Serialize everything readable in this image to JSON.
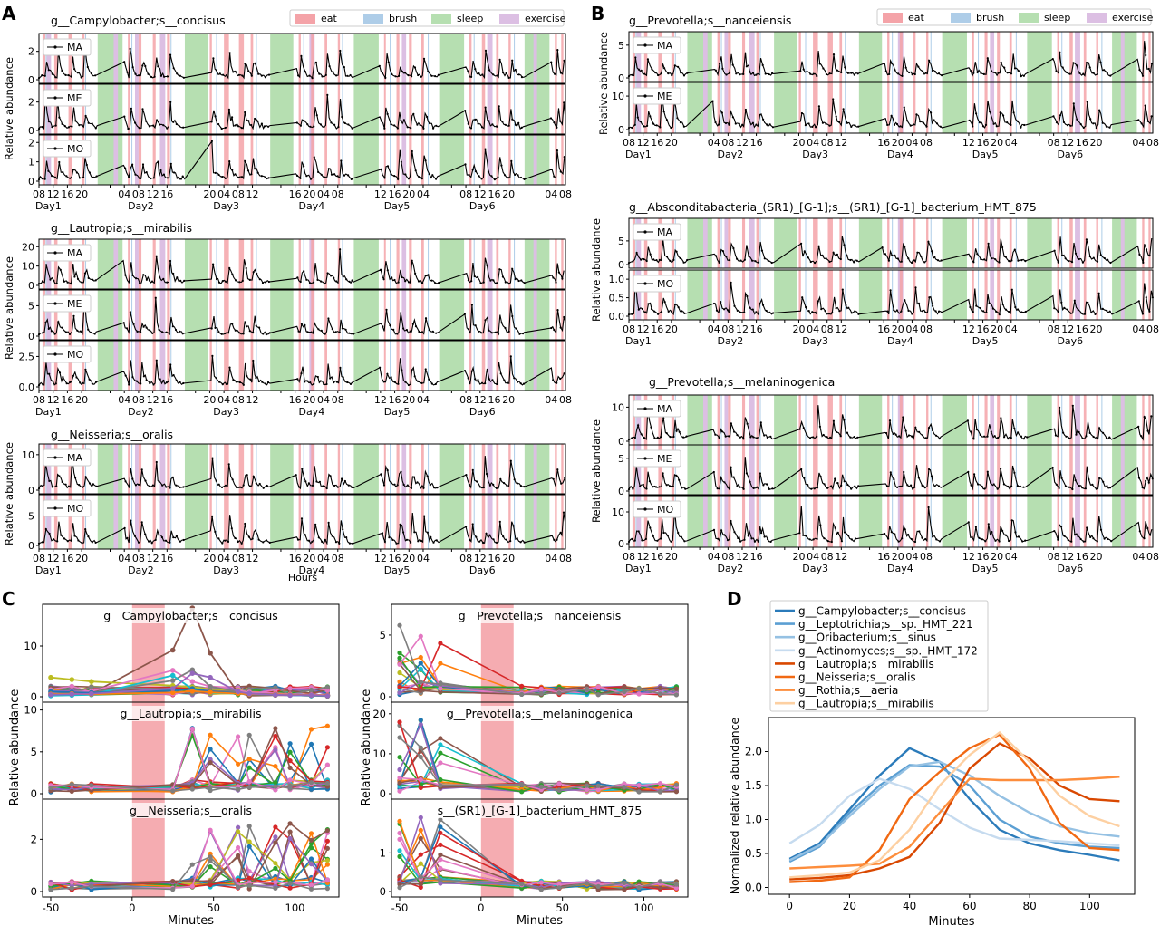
{
  "panel_letters": {
    "A": "A",
    "B": "B",
    "C": "C",
    "D": "D"
  },
  "colors": {
    "eat": "#f4a3a8",
    "brush": "#aecde8",
    "sleep": "#b6dfb1",
    "exercise": "#dcbfe3",
    "trace": "#000000"
  },
  "legend_events": [
    "eat",
    "brush",
    "sleep",
    "exercise"
  ],
  "panelA": {
    "ylabel": "Relative abundance",
    "xlabel": "Hours",
    "hour_ticks": [
      "08",
      "12",
      "16",
      "20",
      "04",
      "08",
      "12",
      "16",
      "20",
      "04",
      "08",
      "12",
      "16",
      "20",
      "04",
      "08",
      "12",
      "16",
      "20",
      "04",
      "08",
      "12",
      "16",
      "20",
      "04",
      "08",
      "12"
    ],
    "day_labels": [
      "Day1",
      "Day2",
      "Day3",
      "Day4",
      "Day5",
      "Day6"
    ],
    "taxa": [
      {
        "title": "g__Campylobacter;s__concisus",
        "subjects": [
          "MA",
          "ME",
          "MO"
        ],
        "yticks": [
          [
            "0",
            "2"
          ],
          [
            "0",
            "2"
          ],
          [
            "0",
            "1",
            "2"
          ]
        ]
      },
      {
        "title": "g__Lautropia;s__mirabilis",
        "subjects": [
          "MA",
          "ME",
          "MO"
        ],
        "yticks": [
          [
            "0",
            "10",
            "20"
          ],
          [
            "0",
            "5"
          ],
          [
            "0.0",
            "2.5"
          ]
        ]
      },
      {
        "title": "g__Neisseria;s__oralis",
        "subjects": [
          "MA",
          "MO"
        ],
        "yticks": [
          [
            "0",
            "10"
          ],
          [
            "0",
            "5"
          ]
        ]
      }
    ]
  },
  "panelB": {
    "ylabel": "Relative abundance",
    "hour_ticks": [
      "08",
      "12",
      "16",
      "20",
      "04",
      "08",
      "12",
      "16",
      "20",
      "04",
      "08",
      "12",
      "16",
      "20",
      "04",
      "08",
      "12",
      "16",
      "20",
      "04",
      "08",
      "12",
      "16",
      "20",
      "04",
      "08",
      "12"
    ],
    "day_labels": [
      "Day1",
      "Day2",
      "Day3",
      "Day4",
      "Day5",
      "Day6"
    ],
    "taxa": [
      {
        "title": "g__Prevotella;s__nanceiensis",
        "subjects": [
          "MA",
          "ME"
        ],
        "yticks": [
          [
            "0",
            "5"
          ],
          [
            "0",
            "10"
          ]
        ]
      },
      {
        "title": "g__Absconditabacteria_(SR1)_[G-1];s__(SR1)_[G-1]_bacterium_HMT_875",
        "subjects": [
          "MA",
          "MO"
        ],
        "yticks": [
          [
            "0",
            "5"
          ],
          [
            "0.0",
            "0.5",
            "1.0"
          ]
        ]
      },
      {
        "title": "g__Prevotella;s__melaninogenica",
        "subjects": [
          "MA",
          "ME",
          "MO"
        ],
        "yticks": [
          [
            "0",
            "10"
          ],
          [
            "0",
            "5"
          ],
          [
            "0",
            "10"
          ]
        ]
      }
    ]
  },
  "panelC": {
    "ylabel": "Relative abundance",
    "xlabel": "Minutes",
    "xticks": [
      "-50",
      "0",
      "50",
      "100"
    ],
    "left_titles": [
      "g__Campylobacter;s__concisus",
      "g__Lautropia;s__mirabilis",
      "g__Neisseria;s__oralis"
    ],
    "right_titles": [
      "g__Prevotella;s__nanceiensis",
      "g__Prevotella;s__melaninogenica",
      "s__(SR1)_[G-1]_bacterium_HMT_875"
    ],
    "left_yticks": [
      [
        "0",
        "10"
      ],
      [
        "0",
        "5",
        "10"
      ],
      [
        "0",
        "2"
      ]
    ],
    "right_yticks": [
      [
        "0",
        "5"
      ],
      [
        "0",
        "10",
        "20"
      ],
      [
        "0",
        "1"
      ]
    ]
  },
  "chart_data": [
    {
      "type": "line",
      "title": "",
      "xlabel": "Minutes",
      "ylabel": "Normalized relative abundance",
      "x": [
        0,
        10,
        20,
        30,
        40,
        50,
        60,
        70,
        80,
        90,
        100,
        110
      ],
      "xlim": [
        -7,
        115
      ],
      "ylim": [
        -0.1,
        2.5
      ],
      "xticks": [
        0,
        20,
        40,
        60,
        80,
        100
      ],
      "yticks": [
        0.0,
        0.5,
        1.0,
        1.5,
        2.0
      ],
      "legend_position": "top-left (above axes)",
      "grid": false,
      "series": [
        {
          "name": "g__Campylobacter;s__concisus",
          "color": "#2b7bba",
          "values": [
            0.42,
            0.65,
            1.15,
            1.65,
            2.05,
            1.85,
            1.3,
            0.85,
            0.65,
            0.55,
            0.48,
            0.4
          ]
        },
        {
          "name": "g__Leptotrichia;s__sp._HMT_221",
          "color": "#5b9fd3",
          "values": [
            0.38,
            0.6,
            1.1,
            1.5,
            1.8,
            1.78,
            1.5,
            1.0,
            0.75,
            0.65,
            0.6,
            0.58
          ]
        },
        {
          "name": "g__Oribacterium;s__sinus",
          "color": "#95c1e3",
          "values": [
            0.4,
            0.62,
            1.05,
            1.45,
            1.78,
            1.85,
            1.65,
            1.35,
            1.1,
            0.9,
            0.8,
            0.75
          ]
        },
        {
          "name": "g__Actinomyces;s__sp._HMT_172",
          "color": "#c6dbef",
          "values": [
            0.65,
            0.92,
            1.35,
            1.6,
            1.45,
            1.15,
            0.88,
            0.72,
            0.7,
            0.68,
            0.65,
            0.62
          ]
        },
        {
          "name": "g__Lautropia;s__mirabilis",
          "color": "#d94801",
          "values": [
            0.12,
            0.14,
            0.18,
            0.28,
            0.45,
            0.95,
            1.75,
            2.12,
            1.9,
            1.5,
            1.3,
            1.27
          ]
        },
        {
          "name": "g__Neisseria;s__oralis",
          "color": "#f16913",
          "values": [
            0.08,
            0.1,
            0.15,
            0.55,
            1.3,
            1.7,
            2.05,
            2.25,
            1.75,
            0.95,
            0.58,
            0.55
          ]
        },
        {
          "name": "g__Rothia;s__aeria",
          "color": "#fd8d3c",
          "values": [
            0.28,
            0.3,
            0.32,
            0.35,
            0.6,
            1.1,
            1.6,
            1.58,
            1.58,
            1.58,
            1.6,
            1.63
          ]
        },
        {
          "name": "g__Lautropia;s__mirabilis",
          "color": "#fdd0a2",
          "values": [
            0.15,
            0.18,
            0.22,
            0.4,
            0.85,
            1.5,
            1.95,
            2.28,
            1.85,
            1.35,
            1.05,
            0.9
          ]
        }
      ]
    },
    {
      "type": "line",
      "title": "",
      "xlabel": "Minutes",
      "ylabel": "Relative abundance",
      "description": "Panel C: per-meal time courses around eating (shaded 0-20 min); many subjects overlaid",
      "x": [
        -50,
        -37,
        -25,
        25,
        37,
        48,
        65,
        72,
        88,
        97,
        110,
        120
      ],
      "xlim": [
        -55,
        127
      ],
      "eat_window_minutes": [
        0,
        20
      ],
      "series": [
        {
          "name": "",
          "color": "#8c564b",
          "values": [
            0.3,
            0.5,
            0.6,
            9.2,
            17.5,
            8.6,
            0.8,
            0.2,
            0.3,
            0.3,
            0.2,
            0.1
          ]
        },
        {
          "name": "",
          "color": "#bcbd22",
          "values": [
            3.8,
            3.4,
            3.0,
            2.2,
            1.9,
            1.5,
            1.3,
            0.9,
            0.6,
            0.4,
            0.3,
            0.2
          ]
        },
        {
          "name": "",
          "color": "#e377c2",
          "values": [
            0.8,
            0.9,
            1.1,
            5.2,
            3.0,
            2.0,
            1.2,
            0.9,
            0.7,
            0.5,
            0.4,
            0.3
          ]
        },
        {
          "name": "",
          "color": "#7f7f7f",
          "values": [
            0.6,
            0.7,
            0.8,
            3.2,
            5.3,
            2.0,
            1.0,
            0.6,
            0.4,
            0.3,
            0.2,
            0.2
          ]
        },
        {
          "name": "",
          "color": "#17becf",
          "values": [
            0.2,
            0.3,
            0.4,
            4.2,
            1.5,
            0.8,
            0.6,
            0.5,
            0.4,
            0.3,
            0.2,
            0.2
          ]
        },
        {
          "name": "",
          "color": "#1f77b4",
          "values": [
            1.0,
            0.9,
            0.8,
            1.2,
            1.6,
            1.0,
            0.7,
            0.6,
            0.5,
            0.4,
            0.3,
            0.3
          ]
        },
        {
          "name": "",
          "color": "#ff7f0e",
          "values": [
            0.5,
            0.6,
            0.5,
            0.8,
            1.1,
            0.9,
            0.6,
            0.5,
            0.5,
            0.4,
            0.3,
            0.3
          ]
        },
        {
          "name": "",
          "color": "#9467bd",
          "values": [
            0.4,
            0.5,
            0.6,
            1.6,
            4.6,
            3.8,
            1.0,
            0.6,
            0.4,
            0.3,
            0.3,
            0.2
          ]
        }
      ]
    }
  ],
  "panelD": {
    "xlabel": "Minutes",
    "ylabel": "Normalized relative abundance",
    "xticks": [
      "0",
      "20",
      "40",
      "60",
      "80",
      "100"
    ],
    "yticks": [
      "0.0",
      "0.5",
      "1.0",
      "1.5",
      "2.0"
    ]
  }
}
